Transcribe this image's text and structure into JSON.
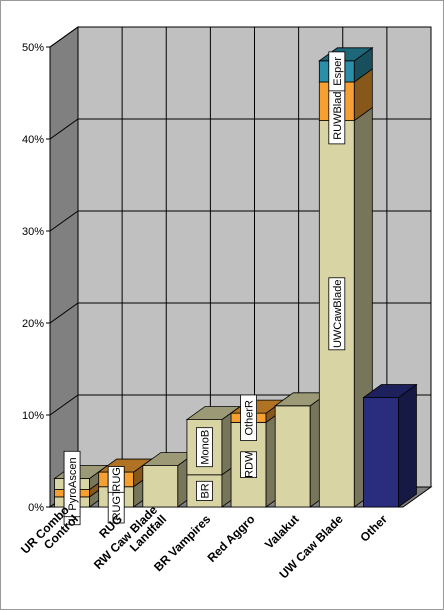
{
  "chart_data": {
    "type": "bar",
    "stacked": true,
    "three_d": true,
    "grid": true,
    "legend": "none",
    "ylim": [
      0,
      50
    ],
    "y_ticks": [
      "0%",
      "10%",
      "20%",
      "30%",
      "40%",
      "50%"
    ],
    "categories": [
      "UR Combo Control",
      "RUG",
      "RW Caw Blade Landfall",
      "BR Vampires",
      "Red Aggro",
      "Valakut",
      "UW Caw Blade",
      "Other"
    ],
    "category_lines": [
      [
        "UR Combo",
        "Control"
      ],
      [
        "RUG"
      ],
      [
        "RW Caw Blade",
        "Landfall"
      ],
      [
        "BR Vampires"
      ],
      [
        "Red Aggro"
      ],
      [
        "Valakut"
      ],
      [
        "UW Caw Blade"
      ],
      [
        "Other"
      ]
    ],
    "stacks": [
      [
        {
          "label": "URTwin",
          "value": 1.1,
          "color": "#d8d4a4"
        },
        {
          "label": "",
          "value": 0.8,
          "color": "#f5a030"
        },
        {
          "label": "PyroAscen",
          "value": 1.2,
          "color": "#d8d4a4"
        }
      ],
      [
        {
          "label": "RUGTwin",
          "value": 2.2,
          "color": "#d8d4a4"
        },
        {
          "label": "RUG",
          "value": 1.6,
          "color": "#f5a030"
        }
      ],
      [
        {
          "label": "",
          "value": 4.5,
          "color": "#d8d4a4"
        }
      ],
      [
        {
          "label": "BR",
          "value": 3.5,
          "color": "#d8d4a4"
        },
        {
          "label": "MonoB",
          "value": 6.0,
          "color": "#d8d4a4"
        }
      ],
      [
        {
          "label": "RDW",
          "value": 9.2,
          "color": "#d8d4a4"
        },
        {
          "label": "OtherR",
          "value": 1.0,
          "color": "#f5a030"
        }
      ],
      [
        {
          "label": "",
          "value": 11.0,
          "color": "#d8d4a4"
        }
      ],
      [
        {
          "label": "UWCawBlade",
          "value": 42.0,
          "color": "#d8d4a4"
        },
        {
          "label": "RUWBladeTwin",
          "value": 4.2,
          "color": "#f5a030"
        },
        {
          "label": "Esper",
          "value": 2.3,
          "color": "#2a8fa8"
        }
      ],
      [
        {
          "label": "",
          "value": 11.9,
          "color": "#2a2d7e"
        }
      ]
    ]
  }
}
